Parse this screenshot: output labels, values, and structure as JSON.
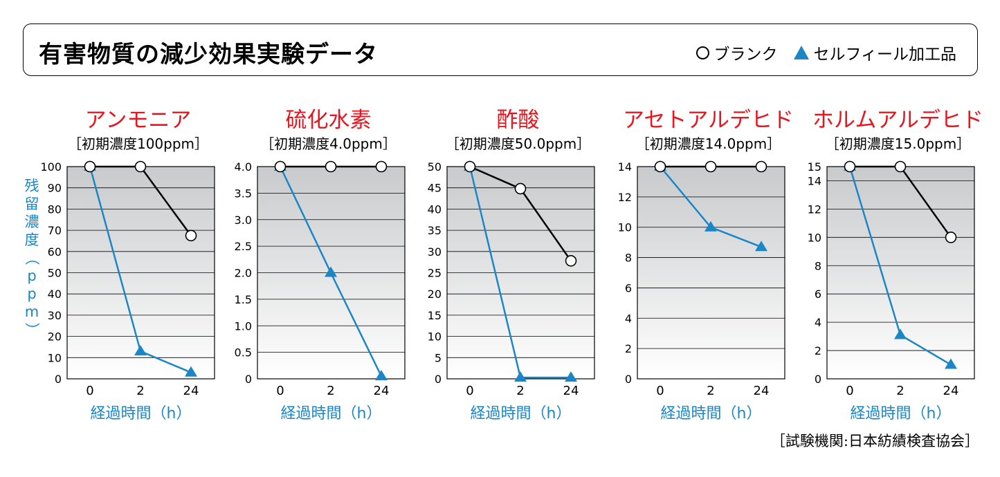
{
  "header": {
    "title": "有害物質の減少効果実験データ",
    "legend_blank": "ブランク",
    "legend_treated": "セルフィール加工品"
  },
  "colors": {
    "title_red": "#e8141e",
    "accent_blue": "#1a86c5",
    "blank_line": "#000000"
  },
  "y_axis_label": "残留濃度（ppm）",
  "credit": "［試験機関:日本紡績検査協会］",
  "chart_data": [
    {
      "type": "line",
      "title": "アンモニア",
      "subtitle": "［初期濃度100ppm］",
      "xlabel": "経過時間（h）",
      "categories": [
        "0",
        "2",
        "24"
      ],
      "ylim": [
        0,
        100
      ],
      "yticks": [
        "0",
        "10",
        "20",
        "30",
        "40",
        "50",
        "60",
        "70",
        "80",
        "90",
        "100"
      ],
      "yvals": [
        0,
        10,
        20,
        30,
        40,
        50,
        60,
        70,
        80,
        90,
        100
      ],
      "series": [
        {
          "name": "ブランク",
          "marker": "circle",
          "values": [
            100,
            100,
            67.5
          ]
        },
        {
          "name": "セルフィール加工品",
          "marker": "triangle",
          "values": [
            100,
            13,
            3
          ]
        }
      ]
    },
    {
      "type": "line",
      "title": "硫化水素",
      "subtitle": "［初期濃度4.0ppm］",
      "xlabel": "経過時間（h）",
      "categories": [
        "0",
        "2",
        "24"
      ],
      "ylim": [
        0,
        4
      ],
      "yticks": [
        "0",
        "0.5",
        "1.0",
        "1.5",
        "2.0",
        "2.5",
        "3.0",
        "3.5",
        "4.0"
      ],
      "yvals": [
        0,
        0.5,
        1,
        1.5,
        2,
        2.5,
        3,
        3.5,
        4
      ],
      "series": [
        {
          "name": "ブランク",
          "marker": "circle",
          "values": [
            4.0,
            4.0,
            4.0
          ]
        },
        {
          "name": "セルフィール加工品",
          "marker": "triangle",
          "values": [
            4.0,
            2.0,
            0.05
          ]
        }
      ]
    },
    {
      "type": "line",
      "title": "酢酸",
      "subtitle": "［初期濃度50.0ppm］",
      "xlabel": "経過時間（h）",
      "categories": [
        "0",
        "2",
        "24"
      ],
      "ylim": [
        0,
        50
      ],
      "yticks": [
        "0",
        "5",
        "10",
        "15",
        "20",
        "25",
        "30",
        "35",
        "40",
        "45",
        "50"
      ],
      "yvals": [
        0,
        5,
        10,
        15,
        20,
        25,
        30,
        35,
        40,
        45,
        50
      ],
      "series": [
        {
          "name": "ブランク",
          "marker": "circle",
          "values": [
            50,
            44.8,
            27.8
          ]
        },
        {
          "name": "セルフィール加工品",
          "marker": "triangle",
          "values": [
            50,
            0.3,
            0.3
          ]
        }
      ]
    },
    {
      "type": "line",
      "title": "アセトアルデヒド",
      "subtitle": "［初期濃度14.0ppm］",
      "xlabel": "経過時間（h）",
      "categories": [
        "0",
        "2",
        "24"
      ],
      "ylim": [
        0,
        14
      ],
      "yticks": [
        "0",
        "2",
        "4",
        "6",
        "8",
        "10",
        "12",
        "14"
      ],
      "yvals": [
        0,
        2,
        4,
        6,
        8,
        10,
        12,
        14
      ],
      "series": [
        {
          "name": "ブランク",
          "marker": "circle",
          "values": [
            14,
            14,
            14
          ]
        },
        {
          "name": "セルフィール加工品",
          "marker": "triangle",
          "values": [
            14,
            10,
            8.7
          ]
        }
      ]
    },
    {
      "type": "line",
      "title": "ホルムアルデヒド",
      "subtitle": "［初期濃度15.0ppm］",
      "xlabel": "経過時間（h）",
      "categories": [
        "0",
        "2",
        "24"
      ],
      "ylim": [
        0,
        15
      ],
      "yticks": [
        "0",
        "2",
        "4",
        "6",
        "8",
        "10",
        "12",
        "14",
        "15"
      ],
      "yvals": [
        0,
        2,
        4,
        6,
        8,
        10,
        12,
        14,
        15
      ],
      "series": [
        {
          "name": "ブランク",
          "marker": "circle",
          "values": [
            15,
            15,
            10
          ]
        },
        {
          "name": "セルフィール加工品",
          "marker": "triangle",
          "values": [
            15,
            3.1,
            1.0
          ]
        }
      ]
    }
  ]
}
